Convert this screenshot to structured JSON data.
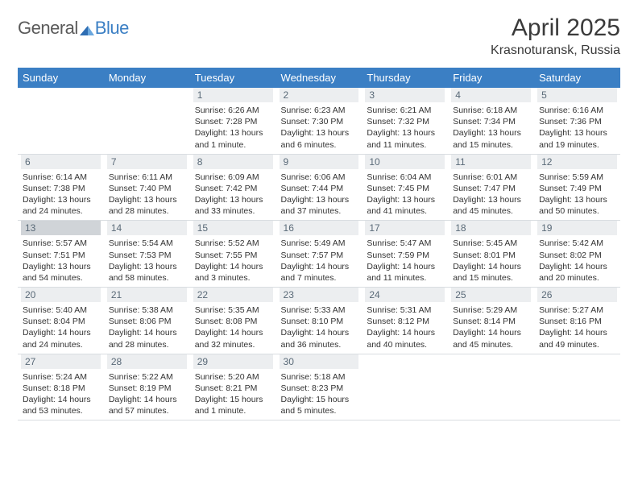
{
  "logo": {
    "part1": "General",
    "part2": "Blue"
  },
  "title": "April 2025",
  "location": "Krasnoturansk, Russia",
  "colors": {
    "header_bg": "#3b7fc4",
    "header_text": "#ffffff",
    "daynum_bg": "#eceef0",
    "daynum_text": "#5a6a78",
    "border": "#d9dde1",
    "body_text": "#333333",
    "logo_gray": "#5a5a5a",
    "logo_blue": "#3b7fc4"
  },
  "weekdays": [
    "Sunday",
    "Monday",
    "Tuesday",
    "Wednesday",
    "Thursday",
    "Friday",
    "Saturday"
  ],
  "weeks": [
    [
      null,
      null,
      {
        "n": "1",
        "sr": "6:26 AM",
        "ss": "7:28 PM",
        "dl": "13 hours and 1 minute."
      },
      {
        "n": "2",
        "sr": "6:23 AM",
        "ss": "7:30 PM",
        "dl": "13 hours and 6 minutes."
      },
      {
        "n": "3",
        "sr": "6:21 AM",
        "ss": "7:32 PM",
        "dl": "13 hours and 11 minutes."
      },
      {
        "n": "4",
        "sr": "6:18 AM",
        "ss": "7:34 PM",
        "dl": "13 hours and 15 minutes."
      },
      {
        "n": "5",
        "sr": "6:16 AM",
        "ss": "7:36 PM",
        "dl": "13 hours and 19 minutes."
      }
    ],
    [
      {
        "n": "6",
        "sr": "6:14 AM",
        "ss": "7:38 PM",
        "dl": "13 hours and 24 minutes."
      },
      {
        "n": "7",
        "sr": "6:11 AM",
        "ss": "7:40 PM",
        "dl": "13 hours and 28 minutes."
      },
      {
        "n": "8",
        "sr": "6:09 AM",
        "ss": "7:42 PM",
        "dl": "13 hours and 33 minutes."
      },
      {
        "n": "9",
        "sr": "6:06 AM",
        "ss": "7:44 PM",
        "dl": "13 hours and 37 minutes."
      },
      {
        "n": "10",
        "sr": "6:04 AM",
        "ss": "7:45 PM",
        "dl": "13 hours and 41 minutes."
      },
      {
        "n": "11",
        "sr": "6:01 AM",
        "ss": "7:47 PM",
        "dl": "13 hours and 45 minutes."
      },
      {
        "n": "12",
        "sr": "5:59 AM",
        "ss": "7:49 PM",
        "dl": "13 hours and 50 minutes."
      }
    ],
    [
      {
        "n": "13",
        "sr": "5:57 AM",
        "ss": "7:51 PM",
        "dl": "13 hours and 54 minutes.",
        "hl": true
      },
      {
        "n": "14",
        "sr": "5:54 AM",
        "ss": "7:53 PM",
        "dl": "13 hours and 58 minutes."
      },
      {
        "n": "15",
        "sr": "5:52 AM",
        "ss": "7:55 PM",
        "dl": "14 hours and 3 minutes."
      },
      {
        "n": "16",
        "sr": "5:49 AM",
        "ss": "7:57 PM",
        "dl": "14 hours and 7 minutes."
      },
      {
        "n": "17",
        "sr": "5:47 AM",
        "ss": "7:59 PM",
        "dl": "14 hours and 11 minutes."
      },
      {
        "n": "18",
        "sr": "5:45 AM",
        "ss": "8:01 PM",
        "dl": "14 hours and 15 minutes."
      },
      {
        "n": "19",
        "sr": "5:42 AM",
        "ss": "8:02 PM",
        "dl": "14 hours and 20 minutes."
      }
    ],
    [
      {
        "n": "20",
        "sr": "5:40 AM",
        "ss": "8:04 PM",
        "dl": "14 hours and 24 minutes."
      },
      {
        "n": "21",
        "sr": "5:38 AM",
        "ss": "8:06 PM",
        "dl": "14 hours and 28 minutes."
      },
      {
        "n": "22",
        "sr": "5:35 AM",
        "ss": "8:08 PM",
        "dl": "14 hours and 32 minutes."
      },
      {
        "n": "23",
        "sr": "5:33 AM",
        "ss": "8:10 PM",
        "dl": "14 hours and 36 minutes."
      },
      {
        "n": "24",
        "sr": "5:31 AM",
        "ss": "8:12 PM",
        "dl": "14 hours and 40 minutes."
      },
      {
        "n": "25",
        "sr": "5:29 AM",
        "ss": "8:14 PM",
        "dl": "14 hours and 45 minutes."
      },
      {
        "n": "26",
        "sr": "5:27 AM",
        "ss": "8:16 PM",
        "dl": "14 hours and 49 minutes."
      }
    ],
    [
      {
        "n": "27",
        "sr": "5:24 AM",
        "ss": "8:18 PM",
        "dl": "14 hours and 53 minutes."
      },
      {
        "n": "28",
        "sr": "5:22 AM",
        "ss": "8:19 PM",
        "dl": "14 hours and 57 minutes."
      },
      {
        "n": "29",
        "sr": "5:20 AM",
        "ss": "8:21 PM",
        "dl": "15 hours and 1 minute."
      },
      {
        "n": "30",
        "sr": "5:18 AM",
        "ss": "8:23 PM",
        "dl": "15 hours and 5 minutes."
      },
      null,
      null,
      null
    ]
  ],
  "labels": {
    "sunrise": "Sunrise:",
    "sunset": "Sunset:",
    "daylight": "Daylight:"
  }
}
